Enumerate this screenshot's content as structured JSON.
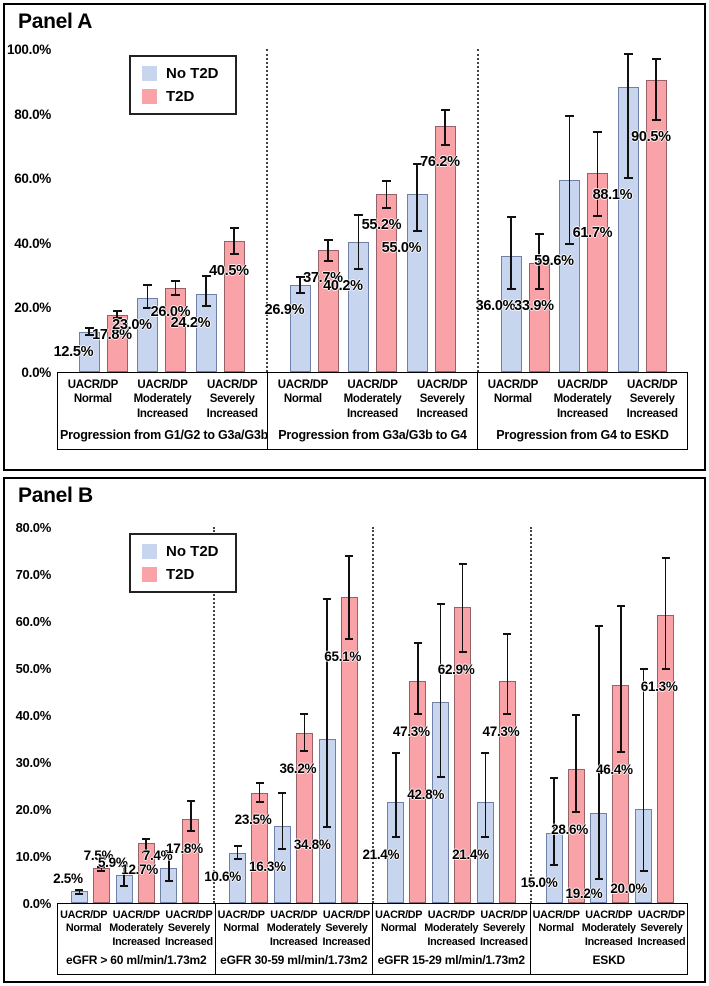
{
  "figure": {
    "legend_items": [
      {
        "label": "No T2D",
        "color_key": "no_t2d"
      },
      {
        "label": "T2D",
        "color_key": "t2d"
      }
    ]
  },
  "colors": {
    "no_t2d_fill": "#c8d5ef",
    "no_t2d_border": "#6f81a9",
    "t2d_fill": "#f9a2a7",
    "t2d_border": "#976267",
    "error_bar": "#111111",
    "panel_border": "#000000"
  },
  "chart_data": [
    {
      "type": "bar",
      "title": "Panel A",
      "xlabel": "",
      "ylabel": "",
      "ylim": [
        0,
        100
      ],
      "grid": false,
      "legend": [
        "No T2D",
        "T2D"
      ],
      "legend_position": "upper-left-inside",
      "ytick_values": [
        0,
        20,
        40,
        60,
        80,
        100
      ],
      "ytick_labels": [
        "0.0%",
        "20.0%",
        "40.0%",
        "60.0%",
        "80.0%",
        "100.0%"
      ],
      "categories": [
        {
          "lines": [
            "UACR/DP",
            "Normal"
          ]
        },
        {
          "lines": [
            "UACR/DP",
            "Moderately",
            "Increased"
          ]
        },
        {
          "lines": [
            "UACR/DP",
            "Severely",
            "Increased"
          ]
        }
      ],
      "groups": [
        {
          "label": "Progression from G1/G2 to G3a/G3b",
          "series": [
            {
              "name": "No T2D",
              "values": [
                12.5,
                23.0,
                24.2
              ],
              "labels": [
                "12.5%",
                "23.0%",
                "24.2%"
              ],
              "ci_low": [
                11.2,
                19.5,
                20.2
              ],
              "ci_high": [
                13.8,
                27.4,
                30.1
              ]
            },
            {
              "name": "T2D",
              "values": [
                17.8,
                26.0,
                40.5
              ],
              "labels": [
                "17.8%",
                "26.0%",
                "40.5%"
              ],
              "ci_low": [
                16.4,
                23.4,
                36.1
              ],
              "ci_high": [
                19.2,
                28.4,
                44.9
              ]
            }
          ]
        },
        {
          "label": "Progression from G3a/G3b to G4",
          "series": [
            {
              "name": "No T2D",
              "values": [
                26.9,
                40.2,
                55.0
              ],
              "labels": [
                "26.9%",
                "40.2%",
                "55.0%"
              ],
              "ci_low": [
                24.2,
                31.7,
                43.5
              ],
              "ci_high": [
                29.6,
                48.8,
                64.6
              ]
            },
            {
              "name": "T2D",
              "values": [
                37.7,
                55.2,
                76.2
              ],
              "labels": [
                "37.7%",
                "55.2%",
                "76.2%"
              ],
              "ci_low": [
                34.2,
                50.6,
                70.0
              ],
              "ci_high": [
                41.2,
                59.3,
                81.4
              ]
            }
          ]
        },
        {
          "label": "Progression from G4 to ESKD",
          "series": [
            {
              "name": "No T2D",
              "values": [
                36.0,
                59.6,
                88.1
              ],
              "labels": [
                "36.0%",
                "59.6%",
                "88.1%"
              ],
              "ci_low": [
                25.5,
                39.4,
                59.9
              ],
              "ci_high": [
                48.4,
                79.5,
                98.8
              ]
            },
            {
              "name": "T2D",
              "values": [
                33.9,
                61.7,
                90.5
              ],
              "labels": [
                "33.9%",
                "61.7%",
                "90.5%"
              ],
              "ci_low": [
                25.5,
                48.1,
                77.6
              ],
              "ci_high": [
                42.9,
                74.5,
                97.2
              ]
            }
          ]
        }
      ]
    },
    {
      "type": "bar",
      "title": "Panel B",
      "xlabel": "",
      "ylabel": "",
      "ylim": [
        0,
        80
      ],
      "grid": false,
      "legend": [
        "No T2D",
        "T2D"
      ],
      "legend_position": "upper-left-inside",
      "ytick_values": [
        0,
        10,
        20,
        30,
        40,
        50,
        60,
        70,
        80
      ],
      "ytick_labels": [
        "0.0%",
        "10.0%",
        "20.0%",
        "30.0%",
        "40.0%",
        "50.0%",
        "60.0%",
        "70.0%",
        "80.0%"
      ],
      "categories": [
        {
          "lines": [
            "UACR/DP",
            "Normal"
          ]
        },
        {
          "lines": [
            "UACR/DP",
            "Moderately",
            "Increased"
          ]
        },
        {
          "lines": [
            "UACR/DP",
            "Severely",
            "Increased"
          ]
        }
      ],
      "groups": [
        {
          "label": "eGFR > 60 ml/min/1.73m2",
          "series": [
            {
              "name": "No T2D",
              "values": [
                2.5,
                5.9,
                7.4
              ],
              "labels": [
                "2.5%",
                "5.9%",
                "7.4%"
              ],
              "ci_low": [
                1.7,
                3.4,
                4.5
              ],
              "ci_high": [
                3.0,
                8.1,
                11.3
              ]
            },
            {
              "name": "T2D",
              "values": [
                7.5,
                12.7,
                17.8
              ],
              "labels": [
                "7.5%",
                "12.7%",
                "17.8%"
              ],
              "ci_low": [
                6.6,
                10.6,
                15.1
              ],
              "ci_high": [
                7.9,
                13.8,
                21.9
              ]
            }
          ]
        },
        {
          "label": "eGFR 30-59 ml/min/1.73m2",
          "series": [
            {
              "name": "No T2D",
              "values": [
                10.6,
                16.3,
                34.8
              ],
              "labels": [
                "10.6%",
                "16.3%",
                "34.8%"
              ],
              "ci_low": [
                9.1,
                11.3,
                16.0
              ],
              "ci_high": [
                12.3,
                23.6,
                64.9
              ]
            },
            {
              "name": "T2D",
              "values": [
                23.5,
                36.2,
                65.1
              ],
              "labels": [
                "23.5%",
                "36.2%",
                "65.1%"
              ],
              "ci_low": [
                21.3,
                32.1,
                56.0
              ],
              "ci_high": [
                25.7,
                40.4,
                74.0
              ]
            }
          ]
        },
        {
          "label": "eGFR 15-29 ml/min/1.73m2",
          "series": [
            {
              "name": "No T2D",
              "values": [
                21.4,
                42.8,
                21.4
              ],
              "labels": [
                "21.4%",
                "42.8%",
                "21.4%"
              ],
              "ci_low": [
                13.8,
                26.6,
                13.8
              ],
              "ci_high": [
                32.1,
                63.8,
                32.1
              ]
            },
            {
              "name": "T2D",
              "values": [
                47.3,
                62.9,
                47.3
              ],
              "labels": [
                "47.3%",
                "62.9%",
                "47.3%"
              ],
              "ci_low": [
                40.0,
                53.2,
                40.0
              ],
              "ci_high": [
                55.5,
                72.3,
                57.4
              ]
            }
          ]
        },
        {
          "label": "ESKD",
          "series": [
            {
              "name": "No T2D",
              "values": [
                15.0,
                19.2,
                20.0
              ],
              "labels": [
                "15.0%",
                "19.2%",
                "20.0%"
              ],
              "ci_low": [
                7.9,
                4.9,
                6.6
              ],
              "ci_high": [
                26.8,
                59.1,
                50.0
              ]
            },
            {
              "name": "T2D",
              "values": [
                28.6,
                46.4,
                61.3
              ],
              "labels": [
                "28.6%",
                "46.4%",
                "61.3%"
              ],
              "ci_low": [
                19.1,
                31.9,
                49.6
              ],
              "ci_high": [
                40.2,
                63.4,
                73.6
              ]
            }
          ]
        }
      ]
    }
  ]
}
